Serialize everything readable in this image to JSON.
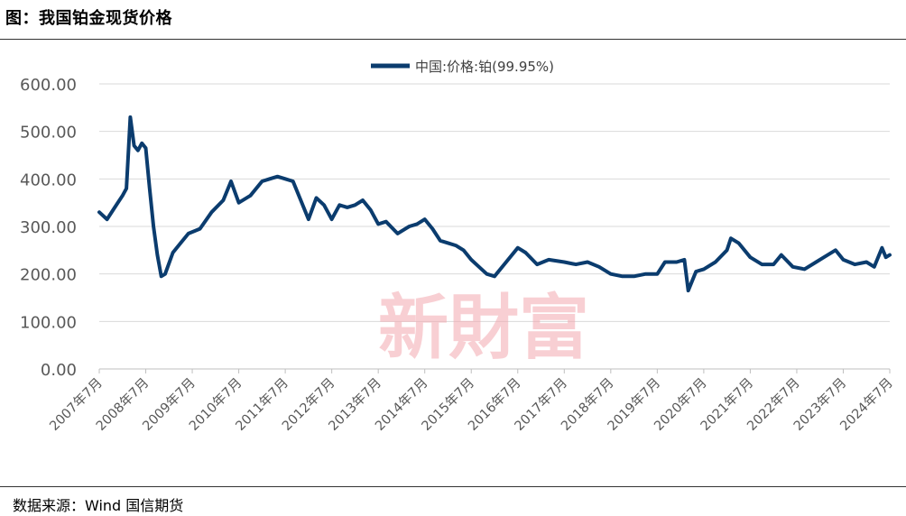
{
  "header": {
    "title": "图：我国铂金现货价格"
  },
  "footer": {
    "source": "数据来源：Wind 国信期货"
  },
  "watermark": {
    "text": "新財富"
  },
  "colors": {
    "series": "#0b3c6e",
    "grid": "#d9d9d9",
    "axis": "#bfbfbf",
    "watermark": "#f4a9b0"
  },
  "chart_data": {
    "type": "line",
    "legend": "top-center",
    "grid": true,
    "ylim": [
      0,
      600
    ],
    "yticks": [
      "600.00",
      "500.00",
      "400.00",
      "300.00",
      "200.00",
      "100.00",
      "0.00"
    ],
    "xticks": [
      "2007年7月",
      "2008年7月",
      "2009年7月",
      "2010年7月",
      "2011年7月",
      "2012年7月",
      "2013年7月",
      "2014年7月",
      "2015年7月",
      "2016年7月",
      "2017年7月",
      "2018年7月",
      "2019年7月",
      "2020年7月",
      "2021年7月",
      "2022年7月",
      "2023年7月",
      "2024年7月"
    ],
    "series": [
      {
        "name": "中国:价格:铂(99.95%)",
        "points": [
          [
            "2007-07",
            330
          ],
          [
            "2007-09",
            315
          ],
          [
            "2007-11",
            340
          ],
          [
            "2008-01",
            365
          ],
          [
            "2008-02",
            380
          ],
          [
            "2008-03",
            530
          ],
          [
            "2008-04",
            470
          ],
          [
            "2008-05",
            460
          ],
          [
            "2008-06",
            475
          ],
          [
            "2008-07",
            465
          ],
          [
            "2008-08",
            380
          ],
          [
            "2008-09",
            300
          ],
          [
            "2008-10",
            240
          ],
          [
            "2008-11",
            195
          ],
          [
            "2008-12",
            200
          ],
          [
            "2009-02",
            245
          ],
          [
            "2009-04",
            265
          ],
          [
            "2009-06",
            285
          ],
          [
            "2009-09",
            295
          ],
          [
            "2009-12",
            330
          ],
          [
            "2010-03",
            355
          ],
          [
            "2010-05",
            395
          ],
          [
            "2010-07",
            350
          ],
          [
            "2010-10",
            365
          ],
          [
            "2011-01",
            395
          ],
          [
            "2011-03",
            400
          ],
          [
            "2011-05",
            405
          ],
          [
            "2011-07",
            400
          ],
          [
            "2011-09",
            395
          ],
          [
            "2011-11",
            355
          ],
          [
            "2012-01",
            315
          ],
          [
            "2012-03",
            360
          ],
          [
            "2012-05",
            345
          ],
          [
            "2012-07",
            315
          ],
          [
            "2012-09",
            345
          ],
          [
            "2012-11",
            340
          ],
          [
            "2013-01",
            345
          ],
          [
            "2013-03",
            355
          ],
          [
            "2013-05",
            335
          ],
          [
            "2013-07",
            305
          ],
          [
            "2013-09",
            310
          ],
          [
            "2013-12",
            285
          ],
          [
            "2014-03",
            300
          ],
          [
            "2014-05",
            305
          ],
          [
            "2014-07",
            315
          ],
          [
            "2014-09",
            295
          ],
          [
            "2014-11",
            270
          ],
          [
            "2015-01",
            265
          ],
          [
            "2015-03",
            260
          ],
          [
            "2015-05",
            250
          ],
          [
            "2015-07",
            230
          ],
          [
            "2015-09",
            215
          ],
          [
            "2015-11",
            200
          ],
          [
            "2016-01",
            195
          ],
          [
            "2016-04",
            225
          ],
          [
            "2016-07",
            255
          ],
          [
            "2016-09",
            245
          ],
          [
            "2016-12",
            220
          ],
          [
            "2017-03",
            230
          ],
          [
            "2017-07",
            225
          ],
          [
            "2017-10",
            220
          ],
          [
            "2018-01",
            225
          ],
          [
            "2018-04",
            215
          ],
          [
            "2018-07",
            200
          ],
          [
            "2018-10",
            195
          ],
          [
            "2019-01",
            195
          ],
          [
            "2019-04",
            200
          ],
          [
            "2019-07",
            200
          ],
          [
            "2019-09",
            225
          ],
          [
            "2019-12",
            225
          ],
          [
            "2020-02",
            230
          ],
          [
            "2020-03",
            165
          ],
          [
            "2020-05",
            205
          ],
          [
            "2020-07",
            210
          ],
          [
            "2020-10",
            225
          ],
          [
            "2021-01",
            250
          ],
          [
            "2021-02",
            275
          ],
          [
            "2021-04",
            265
          ],
          [
            "2021-07",
            235
          ],
          [
            "2021-10",
            220
          ],
          [
            "2022-01",
            220
          ],
          [
            "2022-03",
            240
          ],
          [
            "2022-06",
            215
          ],
          [
            "2022-09",
            210
          ],
          [
            "2022-12",
            225
          ],
          [
            "2023-02",
            235
          ],
          [
            "2023-05",
            250
          ],
          [
            "2023-07",
            230
          ],
          [
            "2023-10",
            220
          ],
          [
            "2024-01",
            225
          ],
          [
            "2024-03",
            215
          ],
          [
            "2024-05",
            255
          ],
          [
            "2024-06",
            235
          ],
          [
            "2024-07",
            240
          ]
        ]
      }
    ]
  }
}
